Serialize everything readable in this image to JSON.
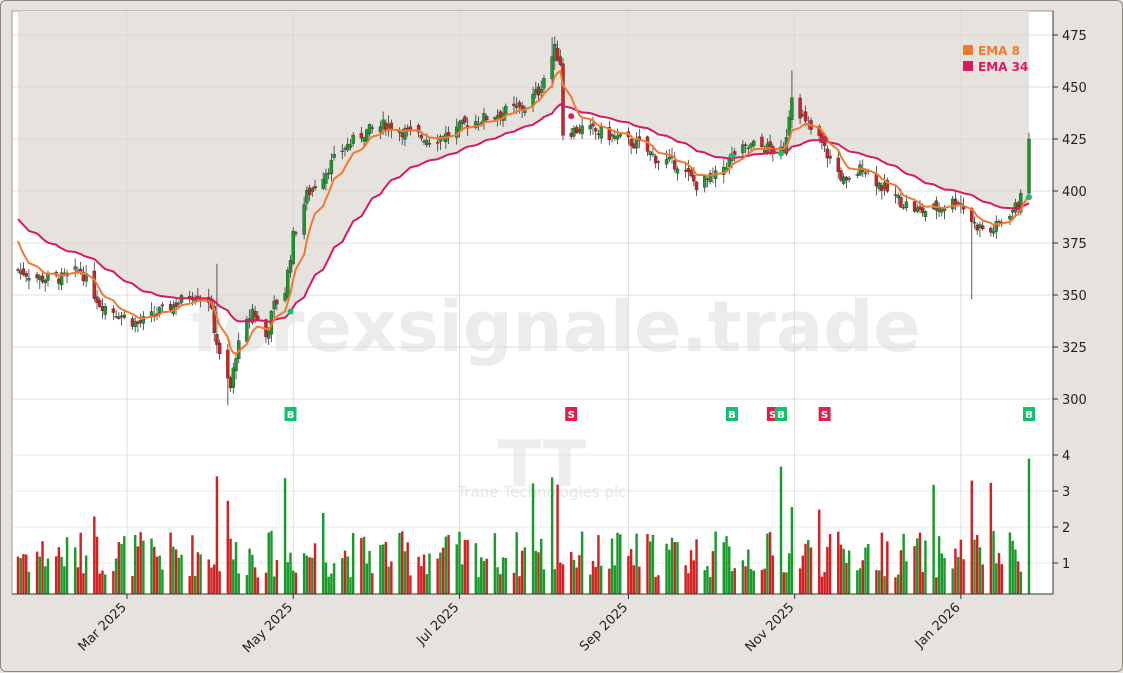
{
  "chart_data": {
    "type": "candlestick",
    "watermark": "forexsignale.trade",
    "ticker": "TT",
    "company": "Trane Technologies plc",
    "price_axis": {
      "ylim": [
        292,
        487
      ],
      "ticks": [
        300,
        325,
        350,
        375,
        400,
        425,
        450,
        475
      ]
    },
    "volume_axis": {
      "ylim": [
        0,
        4.5
      ],
      "ticks": [
        1,
        2,
        3,
        4
      ]
    },
    "x_axis": {
      "range": [
        "2025-01-20",
        "2026-01-26"
      ],
      "ticks": [
        {
          "date": "2025-03-01",
          "label": "Mar 2025"
        },
        {
          "date": "2025-05-01",
          "label": "May 2025"
        },
        {
          "date": "2025-07-01",
          "label": "Jul 2025"
        },
        {
          "date": "2025-09-01",
          "label": "Sep 2025"
        },
        {
          "date": "2025-11-01",
          "label": "Nov 2025"
        },
        {
          "date": "2026-01-01",
          "label": "Jan 2026"
        }
      ]
    },
    "legend": {
      "placement": "top-right",
      "items": [
        {
          "label": "EMA 8",
          "color": "#f07a30"
        },
        {
          "label": "EMA 34",
          "color": "#d81b60"
        }
      ]
    },
    "colors": {
      "up": "#1a9a2a",
      "down": "#d42020",
      "ema8": "#f07a30",
      "ema34": "#d81b60",
      "buy": "#13c06a",
      "sell": "#e0204a"
    },
    "start_date": "2025-01-20",
    "close_anchors": [
      [
        "2025-01-20",
        362
      ],
      [
        "2025-01-28",
        358
      ],
      [
        "2025-02-05",
        358
      ],
      [
        "2025-02-12",
        362
      ],
      [
        "2025-02-19",
        346
      ],
      [
        "2025-02-26",
        341
      ],
      [
        "2025-03-05",
        336
      ],
      [
        "2025-03-12",
        341
      ],
      [
        "2025-03-19",
        346
      ],
      [
        "2025-03-26",
        351
      ],
      [
        "2025-03-31",
        348
      ],
      [
        "2025-04-04",
        320
      ],
      [
        "2025-04-08",
        305
      ],
      [
        "2025-04-10",
        322
      ],
      [
        "2025-04-16",
        343
      ],
      [
        "2025-04-21",
        330
      ],
      [
        "2025-04-24",
        345
      ],
      [
        "2025-04-28",
        352
      ],
      [
        "2025-05-01",
        378
      ],
      [
        "2025-05-06",
        398
      ],
      [
        "2025-05-12",
        408
      ],
      [
        "2025-05-19",
        420
      ],
      [
        "2025-05-27",
        428
      ],
      [
        "2025-06-04",
        432
      ],
      [
        "2025-06-12",
        428
      ],
      [
        "2025-06-20",
        425
      ],
      [
        "2025-06-27",
        427
      ],
      [
        "2025-07-03",
        432
      ],
      [
        "2025-07-10",
        435
      ],
      [
        "2025-07-17",
        438
      ],
      [
        "2025-07-24",
        440
      ],
      [
        "2025-07-30",
        448
      ],
      [
        "2025-08-05",
        468
      ],
      [
        "2025-08-07",
        462
      ],
      [
        "2025-08-08",
        428
      ],
      [
        "2025-08-15",
        430
      ],
      [
        "2025-08-22",
        428
      ],
      [
        "2025-08-29",
        425
      ],
      [
        "2025-09-05",
        422
      ],
      [
        "2025-09-12",
        415
      ],
      [
        "2025-09-19",
        413
      ],
      [
        "2025-09-26",
        403
      ],
      [
        "2025-10-03",
        407
      ],
      [
        "2025-10-10",
        418
      ],
      [
        "2025-10-17",
        422
      ],
      [
        "2025-10-24",
        420
      ],
      [
        "2025-10-28",
        418
      ],
      [
        "2025-10-31",
        447
      ],
      [
        "2025-11-05",
        432
      ],
      [
        "2025-11-10",
        425
      ],
      [
        "2025-11-14",
        415
      ],
      [
        "2025-11-20",
        403
      ],
      [
        "2025-11-26",
        412
      ],
      [
        "2025-12-03",
        402
      ],
      [
        "2025-12-10",
        395
      ],
      [
        "2025-12-17",
        390
      ],
      [
        "2025-12-24",
        392
      ],
      [
        "2025-12-31",
        396
      ],
      [
        "2026-01-06",
        384
      ],
      [
        "2026-01-12",
        380
      ],
      [
        "2026-01-19",
        390
      ],
      [
        "2026-01-22",
        393
      ],
      [
        "2026-01-26",
        425
      ]
    ],
    "spikes": [
      {
        "date": "2025-04-07",
        "low": 297
      },
      {
        "date": "2025-04-03",
        "high": 365
      },
      {
        "date": "2025-08-04",
        "high": 474
      },
      {
        "date": "2025-10-31",
        "high": 458
      },
      {
        "date": "2026-01-05",
        "low": 348
      },
      {
        "date": "2026-01-26",
        "high": 428
      }
    ],
    "signals": [
      {
        "date": "2025-04-30",
        "type": "B",
        "price": 342
      },
      {
        "date": "2025-08-11",
        "type": "S",
        "price": 436
      },
      {
        "date": "2025-10-09",
        "type": "B",
        "price": 417
      },
      {
        "date": "2025-10-24",
        "type": "S",
        "price": 419
      },
      {
        "date": "2025-10-27",
        "type": "B",
        "price": 418
      },
      {
        "date": "2025-11-12",
        "type": "S",
        "price": 425
      },
      {
        "date": "2026-01-26",
        "type": "B",
        "price": 397
      }
    ]
  }
}
